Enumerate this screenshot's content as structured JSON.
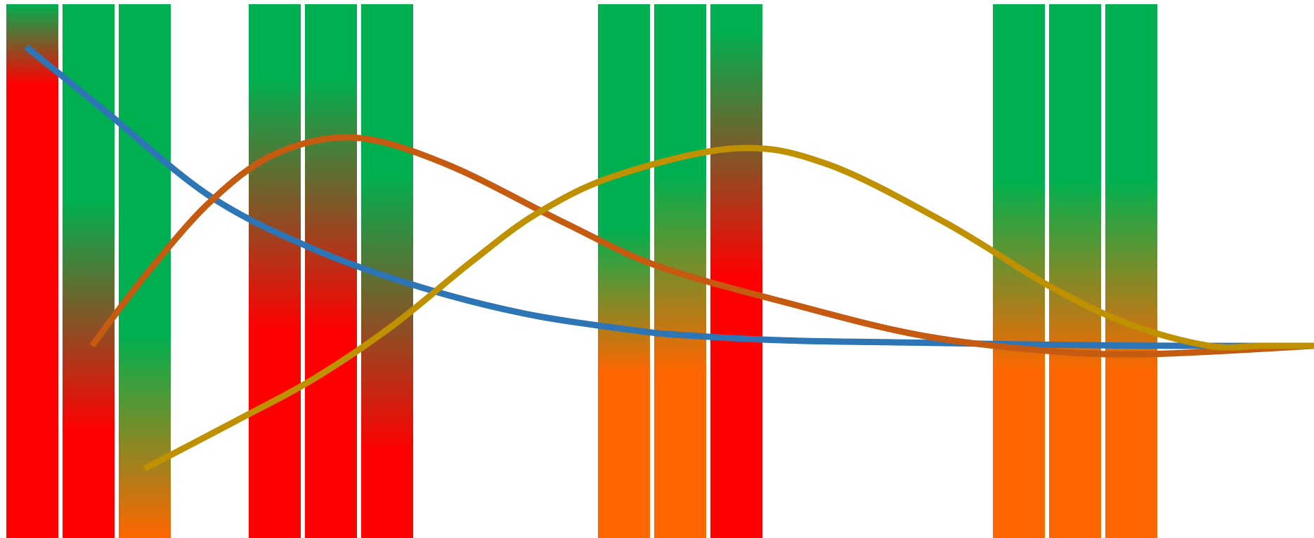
{
  "colors": {
    "green": "#00B050",
    "red": "#FF0000",
    "orange": "#FF6600",
    "blue_line": "#2E75B6",
    "rust_line": "#C55A11",
    "gold_line": "#BF9000",
    "background": "#FFFFFF"
  },
  "chart_data": {
    "type": "bar",
    "grid": false,
    "legend": "none",
    "ylim": [
      0,
      100
    ],
    "groups": [
      {
        "name": "",
        "bars": [
          {
            "stops": [
              {
                "at": 100,
                "color": "green"
              },
              {
                "at": 85,
                "color": "red"
              },
              {
                "at": 0,
                "color": "red"
              }
            ]
          },
          {
            "stops": [
              {
                "at": 100,
                "color": "green"
              },
              {
                "at": 63,
                "color": "green"
              },
              {
                "at": 20,
                "color": "red"
              },
              {
                "at": 0,
                "color": "red"
              }
            ]
          },
          {
            "stops": [
              {
                "at": 100,
                "color": "green"
              },
              {
                "at": 38,
                "color": "green"
              },
              {
                "at": 0,
                "color": "orange"
              }
            ]
          }
        ]
      },
      {
        "name": "",
        "bars": [
          {
            "stops": [
              {
                "at": 100,
                "color": "green"
              },
              {
                "at": 86,
                "color": "green"
              },
              {
                "at": 39,
                "color": "red"
              },
              {
                "at": 0,
                "color": "red"
              }
            ]
          },
          {
            "stops": [
              {
                "at": 100,
                "color": "green"
              },
              {
                "at": 86,
                "color": "green"
              },
              {
                "at": 39,
                "color": "red"
              },
              {
                "at": 0,
                "color": "red"
              }
            ]
          },
          {
            "stops": [
              {
                "at": 100,
                "color": "green"
              },
              {
                "at": 68,
                "color": "green"
              },
              {
                "at": 16,
                "color": "red"
              },
              {
                "at": 0,
                "color": "red"
              }
            ]
          }
        ]
      },
      {
        "name": "",
        "bars": [
          {
            "stops": [
              {
                "at": 100,
                "color": "green"
              },
              {
                "at": 58,
                "color": "green"
              },
              {
                "at": 31,
                "color": "orange"
              },
              {
                "at": 0,
                "color": "orange"
              }
            ]
          },
          {
            "stops": [
              {
                "at": 100,
                "color": "green"
              },
              {
                "at": 68,
                "color": "green"
              },
              {
                "at": 31,
                "color": "orange"
              },
              {
                "at": 0,
                "color": "orange"
              }
            ]
          },
          {
            "stops": [
              {
                "at": 100,
                "color": "green"
              },
              {
                "at": 95,
                "color": "green"
              },
              {
                "at": 49,
                "color": "red"
              },
              {
                "at": 0,
                "color": "red"
              }
            ]
          }
        ]
      },
      {
        "name": "",
        "bars": [
          {
            "stops": [
              {
                "at": 100,
                "color": "green"
              },
              {
                "at": 67,
                "color": "green"
              },
              {
                "at": 31,
                "color": "orange"
              },
              {
                "at": 0,
                "color": "orange"
              }
            ]
          },
          {
            "stops": [
              {
                "at": 100,
                "color": "green"
              },
              {
                "at": 67,
                "color": "green"
              },
              {
                "at": 31,
                "color": "orange"
              },
              {
                "at": 0,
                "color": "orange"
              }
            ]
          },
          {
            "stops": [
              {
                "at": 100,
                "color": "green"
              },
              {
                "at": 67,
                "color": "green"
              },
              {
                "at": 31,
                "color": "orange"
              },
              {
                "at": 0,
                "color": "orange"
              }
            ]
          }
        ]
      }
    ],
    "curve_xlim": [
      0,
      100
    ],
    "curves": [
      {
        "color": "blue_line",
        "points": [
          [
            2,
            92
          ],
          [
            8,
            80
          ],
          [
            16,
            64
          ],
          [
            24,
            54
          ],
          [
            32,
            47
          ],
          [
            40,
            42
          ],
          [
            48,
            39
          ],
          [
            52,
            38
          ],
          [
            60,
            37
          ],
          [
            70,
            36.6
          ],
          [
            80,
            36.2
          ],
          [
            90,
            36
          ],
          [
            100,
            36
          ]
        ]
      },
      {
        "color": "rust_line",
        "points": [
          [
            7,
            36
          ],
          [
            11,
            49
          ],
          [
            16,
            63
          ],
          [
            21,
            72
          ],
          [
            27,
            75
          ],
          [
            34,
            70
          ],
          [
            43,
            59
          ],
          [
            50,
            51
          ],
          [
            60,
            44
          ],
          [
            70,
            38
          ],
          [
            80,
            35
          ],
          [
            88,
            34.5
          ],
          [
            100,
            36
          ]
        ]
      },
      {
        "color": "gold_line",
        "points": [
          [
            11,
            13
          ],
          [
            18,
            22
          ],
          [
            24,
            30
          ],
          [
            30,
            40
          ],
          [
            36,
            52
          ],
          [
            41,
            61
          ],
          [
            47,
            68
          ],
          [
            56,
            73
          ],
          [
            63,
            70
          ],
          [
            72,
            59
          ],
          [
            80,
            47
          ],
          [
            86,
            40
          ],
          [
            92,
            36
          ],
          [
            96,
            36
          ],
          [
            100,
            36
          ]
        ]
      }
    ]
  }
}
